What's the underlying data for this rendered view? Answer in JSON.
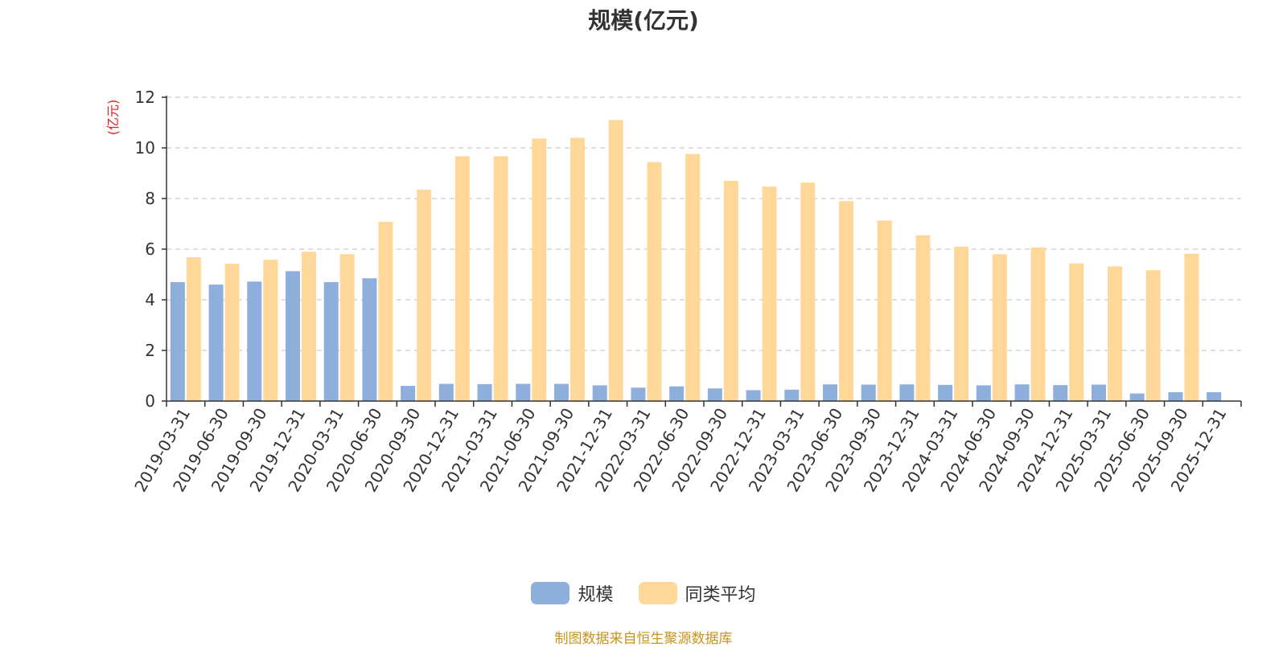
{
  "chart_data": {
    "type": "bar",
    "title": "规模(亿元)",
    "ylabel": "(亿元)",
    "ylim": [
      0,
      12
    ],
    "yticks": [
      0,
      2,
      4,
      6,
      8,
      10,
      12
    ],
    "grid": true,
    "legend_position": "bottom",
    "categories": [
      "2019-03-31",
      "2019-06-30",
      "2019-09-30",
      "2019-12-31",
      "2020-03-31",
      "2020-06-30",
      "2020-09-30",
      "2020-12-31",
      "2021-03-31",
      "2021-06-30",
      "2021-09-30",
      "2021-12-31",
      "2022-03-31",
      "2022-06-30",
      "2022-09-30",
      "2022-12-31",
      "2023-03-31",
      "2023-06-30",
      "2023-09-30",
      "2023-12-31",
      "2024-03-31",
      "2024-06-30",
      "2024-09-30",
      "2024-12-31",
      "2025-03-31",
      "2025-06-30",
      "2025-09-30",
      "2025-12-31"
    ],
    "series": [
      {
        "name": "规模",
        "color": "#8EAEDB",
        "values": [
          4.7,
          4.6,
          4.72,
          5.13,
          4.7,
          4.85,
          0.6,
          0.68,
          0.67,
          0.68,
          0.68,
          0.62,
          0.53,
          0.58,
          0.5,
          0.43,
          0.45,
          0.66,
          0.65,
          0.66,
          0.64,
          0.62,
          0.66,
          0.63,
          0.65,
          0.3,
          0.35,
          0.35
        ]
      },
      {
        "name": "同类平均",
        "color": "#FFD899",
        "values": [
          5.68,
          5.43,
          5.58,
          5.9,
          5.8,
          7.08,
          8.35,
          9.67,
          9.67,
          10.37,
          10.4,
          11.1,
          9.44,
          9.76,
          8.7,
          8.47,
          8.63,
          7.9,
          7.13,
          6.55,
          6.1,
          5.8,
          6.07,
          5.44,
          5.32,
          5.17,
          5.82,
          null
        ]
      }
    ]
  },
  "footer": {
    "source_note": "制图数据来自恒生聚源数据库",
    "source_color": "#C8931E"
  },
  "colors": {
    "axis": "#333333",
    "grid": "#CCCCCC",
    "ylabel": "#E02020"
  }
}
